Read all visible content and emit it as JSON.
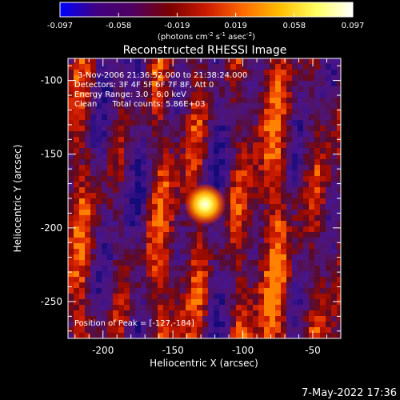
{
  "colorbar": {
    "ticks": [
      "-0.097",
      "-0.058",
      "-0.019",
      "0.019",
      "0.058",
      "0.097"
    ],
    "units_prefix": "(photons cm",
    "units_exp1": "-2",
    "units_mid": " s",
    "units_exp2": "-1",
    "units_mid2": " asec",
    "units_exp3": "-2",
    "units_suffix": ")",
    "colors": [
      "#0000ff",
      "#400080",
      "#500060",
      "#7a0000",
      "#cc1a00",
      "#ff6a00",
      "#ffbd00",
      "#ffff60",
      "#ffffff"
    ]
  },
  "title": "Reconstructed RHESSI Image",
  "info": [
    "3-Nov-2006 21:36:52.000 to 21:38:24.000",
    "Detectors: 3F 4F 5F 6F 7F 8F, Att 0",
    "Energy Range: 3.0 - 6.0 keV",
    "Clean      Total counts: 5.86E+03"
  ],
  "peak_label": "Position of Peak = [-127,-184]",
  "axes": {
    "xlabel": "Heliocentric X (arcsec)",
    "ylabel": "Heliocentric Y (arcsec)",
    "xticks": [
      {
        "value": -200,
        "label": "-200"
      },
      {
        "value": -150,
        "label": "-150"
      },
      {
        "value": -100,
        "label": "-100"
      },
      {
        "value": -50,
        "label": "-50"
      }
    ],
    "yticks": [
      {
        "value": -100,
        "label": "-100"
      },
      {
        "value": -150,
        "label": "-150"
      },
      {
        "value": -200,
        "label": "-200"
      },
      {
        "value": -250,
        "label": "-250"
      }
    ],
    "xlim": [
      -225,
      -30
    ],
    "ylim": [
      -275,
      -85
    ]
  },
  "peak": {
    "x": -127,
    "y": -184
  },
  "timestamp": "7-May-2022 17:36"
}
